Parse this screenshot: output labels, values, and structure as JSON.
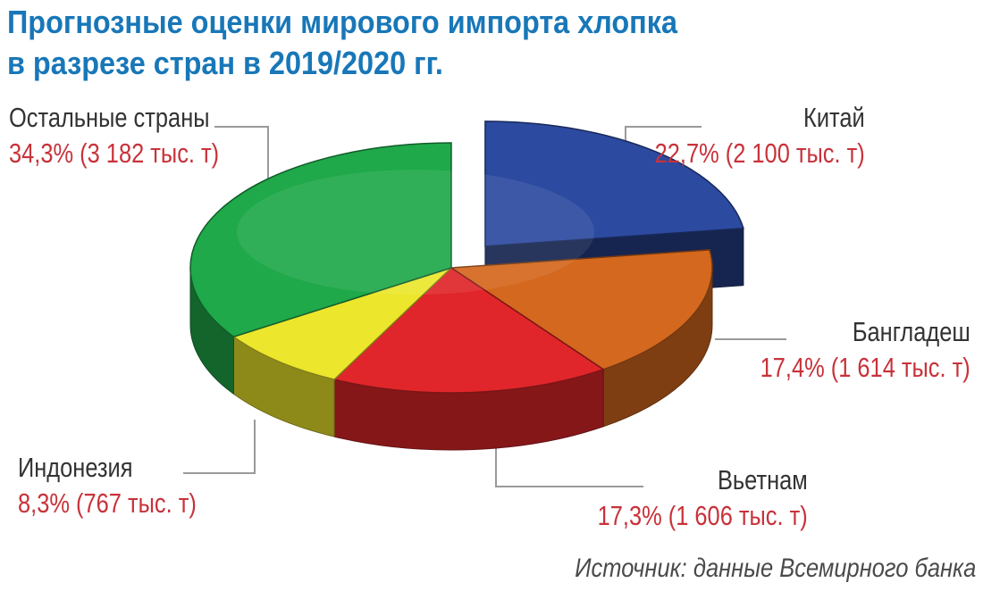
{
  "title": {
    "line1": "Прогнозные оценки мирового импорта хлопка",
    "line2": "в разрезе стран в 2019/2020 гг."
  },
  "source": "Источник: данные Всемирного банка",
  "chart_data": {
    "type": "pie",
    "title": "Прогнозные оценки мирового импорта хлопка в разрезе стран в 2019/2020 гг.",
    "unit": "тыс. т",
    "slices": [
      {
        "name": "Китай",
        "percent": 22.7,
        "value": 2100,
        "label": "22,7% (2 100 тыс. т)",
        "color": "#2c4aa0",
        "exploded": true
      },
      {
        "name": "Бангладеш",
        "percent": 17.4,
        "value": 1614,
        "label": "17,4% (1 614 тыс. т)",
        "color": "#d4681e"
      },
      {
        "name": "Вьетнам",
        "percent": 17.3,
        "value": 1606,
        "label": "17,3% (1 606 тыс. т)",
        "color": "#e0262a"
      },
      {
        "name": "Индонезия",
        "percent": 8.3,
        "value": 767,
        "label": "8,3% (767 тыс. т)",
        "color": "#ece62c"
      },
      {
        "name": "Остальные страны",
        "percent": 34.3,
        "value": 3182,
        "label": "34,3% (3 182 тыс. т)",
        "color": "#1fa94a"
      }
    ],
    "legend": "callouts"
  }
}
